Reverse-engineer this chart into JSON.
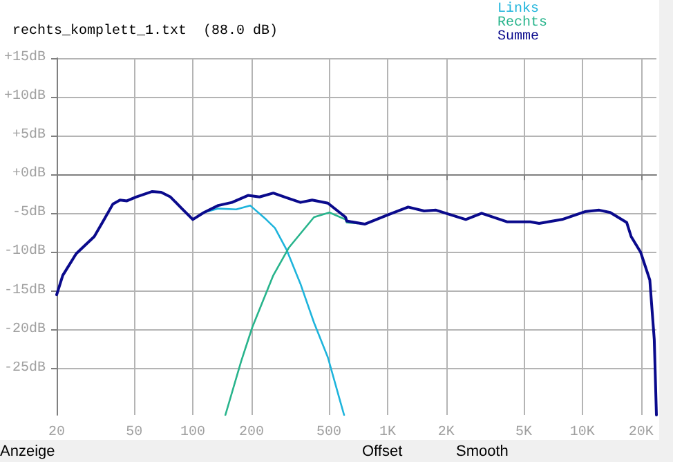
{
  "chart_data": {
    "type": "line",
    "title": "rechts_komplett_1.txt  (88.0 dB)",
    "annotations": [
      "Anzeige",
      "Offset",
      "Smooth"
    ],
    "log": "x",
    "grid": true,
    "legend": "top right",
    "marker": "none",
    "line_style": "solid",
    "xlim": [
      20,
      24000
    ],
    "ylim": [
      -31,
      15
    ],
    "xticks": [
      20,
      50,
      100,
      200,
      500,
      {
        "value": 1000,
        "label": "1K"
      },
      {
        "value": 2000,
        "label": "2K"
      },
      {
        "value": 5000,
        "label": "5K"
      },
      {
        "value": 10000,
        "label": "10K"
      },
      {
        "value": 20000,
        "label": "20K"
      }
    ],
    "yticks": [
      {
        "value": 15,
        "label": "+15dB"
      },
      {
        "value": 10,
        "label": "+10dB"
      },
      {
        "value": 5,
        "label": "+5dB"
      },
      {
        "value": 0,
        "label": "+0dB"
      },
      {
        "value": -5,
        "label": "-5dB"
      },
      {
        "value": -10,
        "label": "-10dB"
      },
      {
        "value": -15,
        "label": "-15dB"
      },
      {
        "value": -20,
        "label": "-20dB"
      },
      {
        "value": -25,
        "label": "-25dB"
      }
    ],
    "series": [
      {
        "name": "Links",
        "color": "#1eb4dc",
        "x": [
          114,
          135,
          167,
          197,
          238,
          264,
          303,
          357,
          419,
          494,
          569,
          598
        ],
        "values": [
          -4.9,
          -4.4,
          -4.5,
          -4.0,
          -5.8,
          -6.9,
          -9.7,
          -14.1,
          -19.1,
          -23.6,
          -29.1,
          -31
        ]
      },
      {
        "name": "Rechts",
        "color": "#28b48c",
        "x": [
          147,
          177,
          202,
          259,
          312,
          419,
          503,
          608,
          617,
          700
        ],
        "values": [
          -31,
          -24.1,
          -19.7,
          -13,
          -9.4,
          -5.5,
          -4.9,
          -5.8,
          -6.2,
          -6.3
        ]
      },
      {
        "name": "Summe",
        "color": "#0a0a8c",
        "x": [
          20,
          21.5,
          25.2,
          31.2,
          34.7,
          38.9,
          42.3,
          45.9,
          51.1,
          61.9,
          68.8,
          76.8,
          87.9,
          100,
          114,
          135,
          159,
          192,
          220,
          259,
          303,
          357,
          410,
          494,
          608,
          617,
          763,
          1004,
          1275,
          1540,
          1772,
          2520,
          3040,
          4100,
          5400,
          6000,
          7870,
          10300,
          12200,
          13900,
          16900,
          17800,
          19900,
          22200,
          23400,
          24000
        ],
        "values": [
          -15.5,
          -13,
          -10.2,
          -8,
          -6,
          -3.8,
          -3.3,
          -3.4,
          -2.9,
          -2.2,
          -2.3,
          -2.9,
          -4.4,
          -5.8,
          -4.9,
          -4.0,
          -3.6,
          -2.7,
          -2.9,
          -2.4,
          -3,
          -3.6,
          -3.3,
          -3.7,
          -5.5,
          -6.0,
          -6.4,
          -5.2,
          -4.2,
          -4.7,
          -4.6,
          -5.8,
          -5,
          -6.1,
          -6.1,
          -6.3,
          -5.8,
          -4.8,
          -4.6,
          -4.9,
          -6.2,
          -8,
          -10,
          -13.6,
          -21.3,
          -31
        ]
      }
    ]
  }
}
